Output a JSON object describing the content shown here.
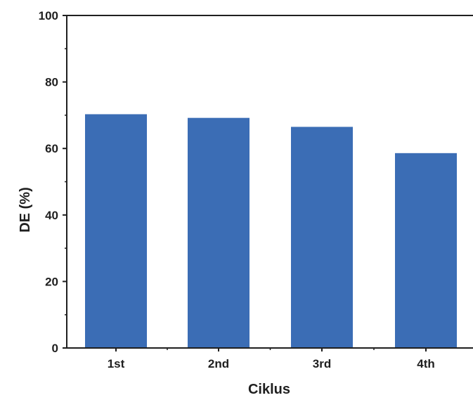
{
  "chart_data": {
    "type": "bar",
    "title": "",
    "xlabel": "Ciklus",
    "ylabel": "DE (%)",
    "categories": [
      "1st",
      "2nd",
      "3rd",
      "4th"
    ],
    "values": [
      70.3,
      69.2,
      66.5,
      58.6
    ],
    "ylim": [
      0,
      100
    ],
    "yticks": [
      0,
      20,
      40,
      60,
      80,
      100
    ],
    "grid": false,
    "bar_color": "#3b6db5",
    "axis_color": "#1f1f1f"
  }
}
